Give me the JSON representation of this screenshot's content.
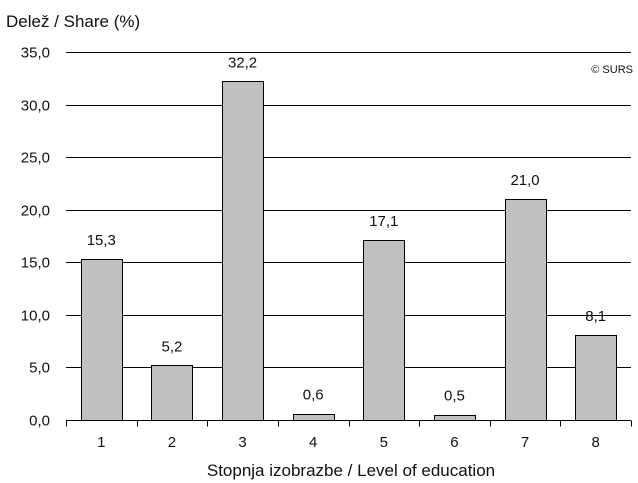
{
  "chart_data": {
    "type": "bar",
    "title": "",
    "ylabel": "Delež / Share (%)",
    "xlabel": "Stopnja izobrazbe / Level of education",
    "categories": [
      "1",
      "2",
      "3",
      "4",
      "5",
      "6",
      "7",
      "8"
    ],
    "values": [
      15.3,
      5.2,
      32.2,
      0.6,
      17.1,
      0.5,
      21.0,
      8.1
    ],
    "data_labels": [
      "15,3",
      "5,2",
      "32,2",
      "0,6",
      "17,1",
      "0,5",
      "21,0",
      "8,1"
    ],
    "ylim": [
      0,
      35
    ],
    "yticks": [
      0,
      5,
      10,
      15,
      20,
      25,
      30,
      35
    ],
    "ytick_labels": [
      "0,0",
      "5,0",
      "10,0",
      "15,0",
      "20,0",
      "25,0",
      "30,0",
      "35,0"
    ],
    "grid": true,
    "legend": "none",
    "bar_color": "#c0c0c0",
    "annotation": "© SURS"
  }
}
